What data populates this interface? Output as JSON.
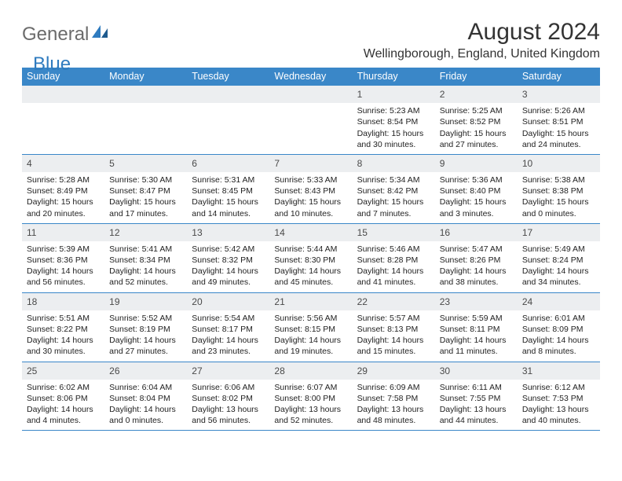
{
  "logo": {
    "text1": "General",
    "text2": "Blue"
  },
  "title": "August 2024",
  "location": "Wellingborough, England, United Kingdom",
  "colors": {
    "header_bg": "#3a87c8",
    "daynum_bg": "#eceef0",
    "rule": "#3a87c8",
    "logo_gray": "#6b6b6b",
    "logo_blue": "#2f7bbf"
  },
  "weekdays": [
    "Sunday",
    "Monday",
    "Tuesday",
    "Wednesday",
    "Thursday",
    "Friday",
    "Saturday"
  ],
  "weeks": [
    [
      {
        "n": "",
        "empty": true
      },
      {
        "n": "",
        "empty": true
      },
      {
        "n": "",
        "empty": true
      },
      {
        "n": "",
        "empty": true
      },
      {
        "n": "1",
        "sunrise": "5:23 AM",
        "sunset": "8:54 PM",
        "daylight": "15 hours and 30 minutes."
      },
      {
        "n": "2",
        "sunrise": "5:25 AM",
        "sunset": "8:52 PM",
        "daylight": "15 hours and 27 minutes."
      },
      {
        "n": "3",
        "sunrise": "5:26 AM",
        "sunset": "8:51 PM",
        "daylight": "15 hours and 24 minutes."
      }
    ],
    [
      {
        "n": "4",
        "sunrise": "5:28 AM",
        "sunset": "8:49 PM",
        "daylight": "15 hours and 20 minutes."
      },
      {
        "n": "5",
        "sunrise": "5:30 AM",
        "sunset": "8:47 PM",
        "daylight": "15 hours and 17 minutes."
      },
      {
        "n": "6",
        "sunrise": "5:31 AM",
        "sunset": "8:45 PM",
        "daylight": "15 hours and 14 minutes."
      },
      {
        "n": "7",
        "sunrise": "5:33 AM",
        "sunset": "8:43 PM",
        "daylight": "15 hours and 10 minutes."
      },
      {
        "n": "8",
        "sunrise": "5:34 AM",
        "sunset": "8:42 PM",
        "daylight": "15 hours and 7 minutes."
      },
      {
        "n": "9",
        "sunrise": "5:36 AM",
        "sunset": "8:40 PM",
        "daylight": "15 hours and 3 minutes."
      },
      {
        "n": "10",
        "sunrise": "5:38 AM",
        "sunset": "8:38 PM",
        "daylight": "15 hours and 0 minutes."
      }
    ],
    [
      {
        "n": "11",
        "sunrise": "5:39 AM",
        "sunset": "8:36 PM",
        "daylight": "14 hours and 56 minutes."
      },
      {
        "n": "12",
        "sunrise": "5:41 AM",
        "sunset": "8:34 PM",
        "daylight": "14 hours and 52 minutes."
      },
      {
        "n": "13",
        "sunrise": "5:42 AM",
        "sunset": "8:32 PM",
        "daylight": "14 hours and 49 minutes."
      },
      {
        "n": "14",
        "sunrise": "5:44 AM",
        "sunset": "8:30 PM",
        "daylight": "14 hours and 45 minutes."
      },
      {
        "n": "15",
        "sunrise": "5:46 AM",
        "sunset": "8:28 PM",
        "daylight": "14 hours and 41 minutes."
      },
      {
        "n": "16",
        "sunrise": "5:47 AM",
        "sunset": "8:26 PM",
        "daylight": "14 hours and 38 minutes."
      },
      {
        "n": "17",
        "sunrise": "5:49 AM",
        "sunset": "8:24 PM",
        "daylight": "14 hours and 34 minutes."
      }
    ],
    [
      {
        "n": "18",
        "sunrise": "5:51 AM",
        "sunset": "8:22 PM",
        "daylight": "14 hours and 30 minutes."
      },
      {
        "n": "19",
        "sunrise": "5:52 AM",
        "sunset": "8:19 PM",
        "daylight": "14 hours and 27 minutes."
      },
      {
        "n": "20",
        "sunrise": "5:54 AM",
        "sunset": "8:17 PM",
        "daylight": "14 hours and 23 minutes."
      },
      {
        "n": "21",
        "sunrise": "5:56 AM",
        "sunset": "8:15 PM",
        "daylight": "14 hours and 19 minutes."
      },
      {
        "n": "22",
        "sunrise": "5:57 AM",
        "sunset": "8:13 PM",
        "daylight": "14 hours and 15 minutes."
      },
      {
        "n": "23",
        "sunrise": "5:59 AM",
        "sunset": "8:11 PM",
        "daylight": "14 hours and 11 minutes."
      },
      {
        "n": "24",
        "sunrise": "6:01 AM",
        "sunset": "8:09 PM",
        "daylight": "14 hours and 8 minutes."
      }
    ],
    [
      {
        "n": "25",
        "sunrise": "6:02 AM",
        "sunset": "8:06 PM",
        "daylight": "14 hours and 4 minutes."
      },
      {
        "n": "26",
        "sunrise": "6:04 AM",
        "sunset": "8:04 PM",
        "daylight": "14 hours and 0 minutes."
      },
      {
        "n": "27",
        "sunrise": "6:06 AM",
        "sunset": "8:02 PM",
        "daylight": "13 hours and 56 minutes."
      },
      {
        "n": "28",
        "sunrise": "6:07 AM",
        "sunset": "8:00 PM",
        "daylight": "13 hours and 52 minutes."
      },
      {
        "n": "29",
        "sunrise": "6:09 AM",
        "sunset": "7:58 PM",
        "daylight": "13 hours and 48 minutes."
      },
      {
        "n": "30",
        "sunrise": "6:11 AM",
        "sunset": "7:55 PM",
        "daylight": "13 hours and 44 minutes."
      },
      {
        "n": "31",
        "sunrise": "6:12 AM",
        "sunset": "7:53 PM",
        "daylight": "13 hours and 40 minutes."
      }
    ]
  ],
  "labels": {
    "sunrise": "Sunrise:",
    "sunset": "Sunset:",
    "daylight": "Daylight:"
  }
}
